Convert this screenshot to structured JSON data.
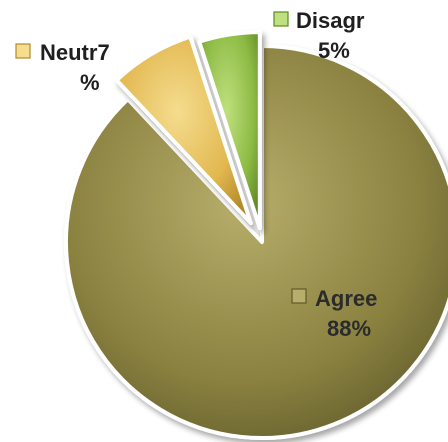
{
  "chart_data": {
    "type": "pie",
    "exploded": true,
    "slices": [
      {
        "name": "Agree",
        "value": 88,
        "label_lines": [
          "Agree",
          "88%"
        ],
        "color": "#8a8140",
        "color_light": "#b7ae6b",
        "color_dark": "#5f5a2a",
        "label_color": "#2b2b2b"
      },
      {
        "name": "Neutr",
        "value": 7,
        "label_lines": [
          "Neutr7",
          "%"
        ],
        "color": "#e2b850",
        "color_light": "#f5dc8e",
        "color_dark": "#b38a2a",
        "label_color": "#1f1f1f"
      },
      {
        "name": "Disagr",
        "value": 5,
        "label_lines": [
          "Disagr",
          "5%"
        ],
        "color": "#8cba43",
        "color_light": "#bfe07e",
        "color_dark": "#5f8a25",
        "label_color": "#1f1f1f"
      }
    ]
  }
}
